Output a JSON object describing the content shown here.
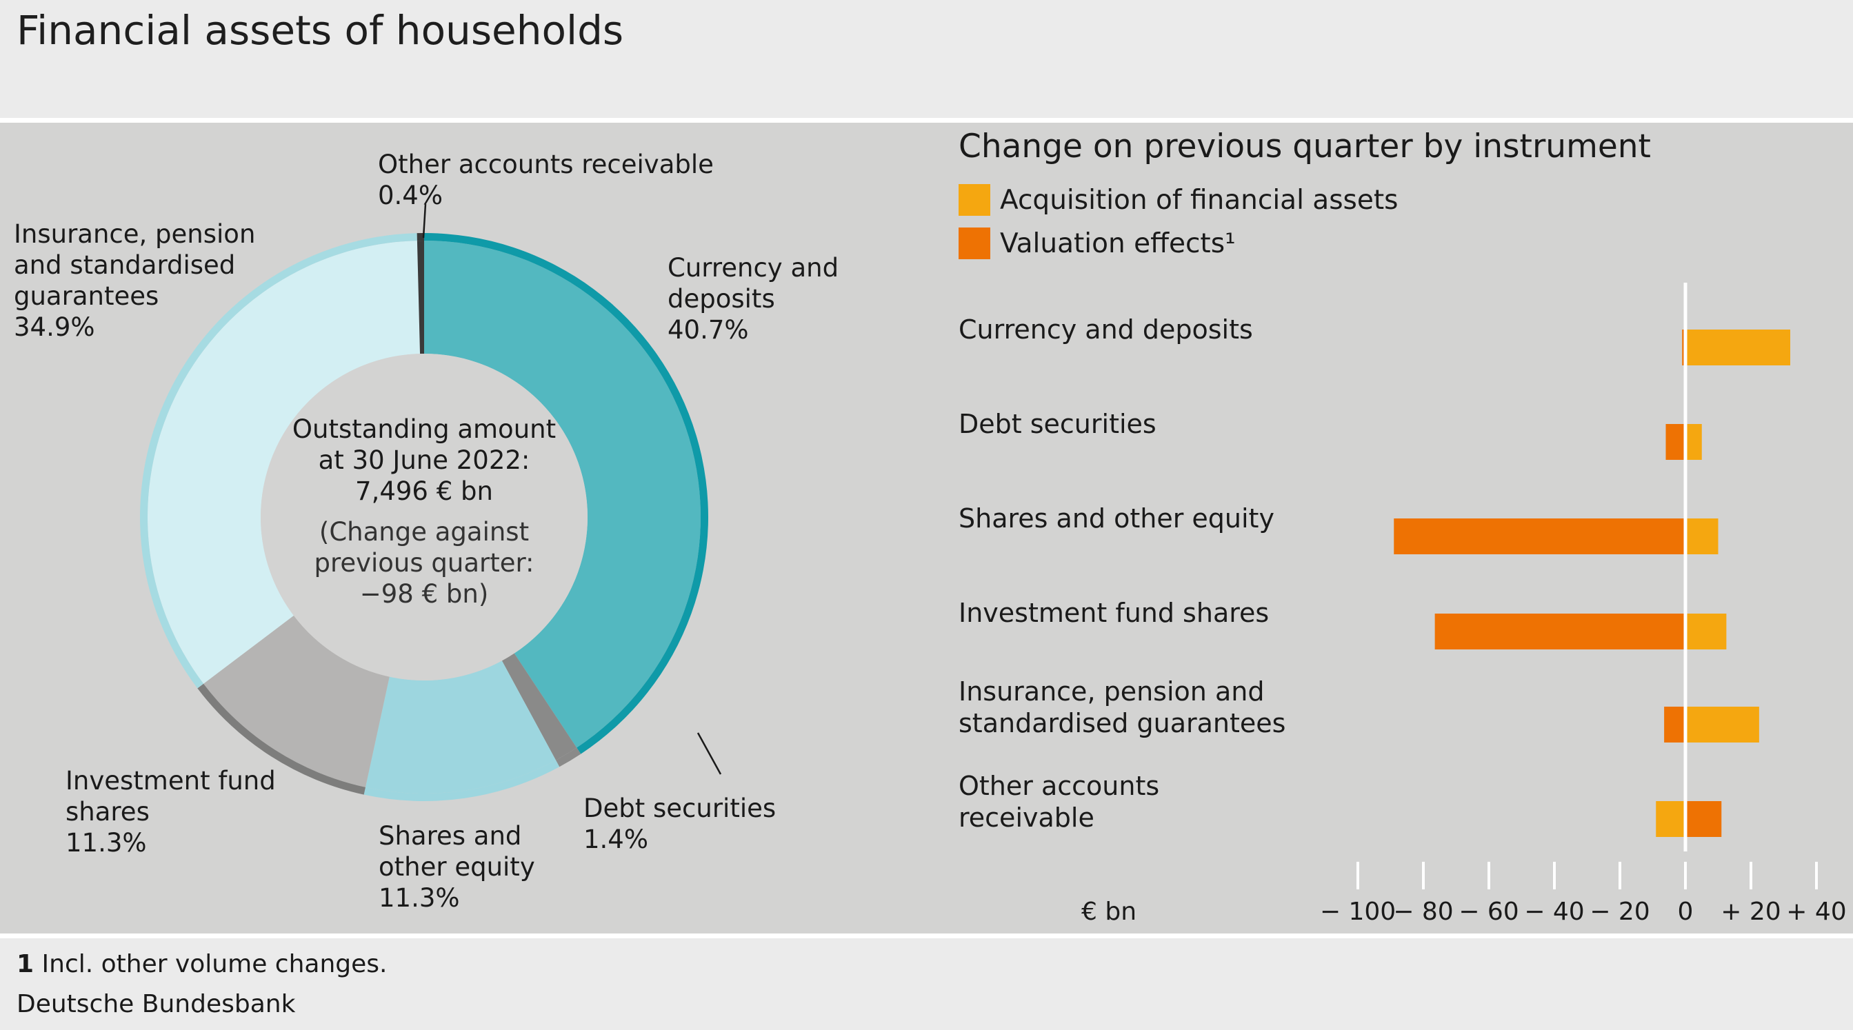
{
  "title": "Financial assets of households",
  "colors": {
    "currency": "#53b8c0",
    "currency_rim": "#0f9aa8",
    "debt": "#8a8a89",
    "shares": "#9dd6df",
    "fund": "#b5b4b3",
    "fund_rim": "#7d7d7c",
    "insurance": "#d3eff3",
    "insurance_rim": "#a6dbe2",
    "other": "#3a3a3a",
    "acquisition": "#f5a710",
    "valuation": "#ee7203"
  },
  "donut": {
    "center_line1": "Outstanding amount",
    "center_line2": "at 30 June 2022:",
    "center_line3": "7,496 € bn",
    "change_line1": "(Change against",
    "change_line2": "previous quarter:",
    "change_line3": "−98 € bn)",
    "labels": {
      "currency": [
        "Currency and",
        "deposits",
        "40.7%"
      ],
      "debt": [
        "Debt securities",
        "1.4%"
      ],
      "shares": [
        "Shares and",
        "other equity",
        "11.3%"
      ],
      "fund": [
        "Investment fund",
        "shares",
        "11.3%"
      ],
      "insurance": [
        "Insurance, pension",
        "and standardised",
        "guarantees",
        "34.9%"
      ],
      "other": [
        "Other accounts receivable",
        "0.4%"
      ]
    }
  },
  "bar_panel": {
    "title": "Change on previous quarter by instrument",
    "legend": [
      "Acquisition of financial assets",
      "Valuation effects¹"
    ],
    "categories": [
      [
        "Currency and deposits"
      ],
      [
        "Debt securities"
      ],
      [
        "Shares and other equity"
      ],
      [
        "Investment fund shares"
      ],
      [
        "Insurance, pension and",
        "standardised guarantees"
      ],
      [
        "Other accounts",
        "receivable"
      ]
    ],
    "ticks": [
      "− 100",
      "− 80",
      "− 60",
      "− 40",
      "− 20",
      "0",
      "+ 20",
      "+ 40"
    ],
    "unit": "€ bn"
  },
  "footnote": {
    "num": "1",
    "text": " Incl. other volume changes.",
    "source": "Deutsche Bundesbank"
  },
  "chart_data": [
    {
      "type": "pie",
      "title": "",
      "categories": [
        "Currency and deposits",
        "Debt securities",
        "Shares and other equity",
        "Investment fund shares",
        "Insurance, pension and standardised guarantees",
        "Other accounts receivable"
      ],
      "values": [
        40.7,
        1.4,
        11.3,
        11.3,
        34.9,
        0.4
      ]
    },
    {
      "type": "bar",
      "title": "Change on previous quarter by instrument",
      "categories": [
        "Currency and deposits",
        "Debt securities",
        "Shares and other equity",
        "Investment fund shares",
        "Insurance, pension and standardised guarantees",
        "Other accounts receivable"
      ],
      "series": [
        {
          "name": "Acquisition of financial assets",
          "values": [
            32,
            5,
            10,
            12.5,
            22.5,
            -9
          ]
        },
        {
          "name": "Valuation effects¹",
          "values": [
            -1,
            -6,
            -89,
            -76.5,
            -6.5,
            11
          ]
        }
      ],
      "xlabel": "€ bn",
      "xlim": [
        -100,
        40
      ]
    }
  ]
}
